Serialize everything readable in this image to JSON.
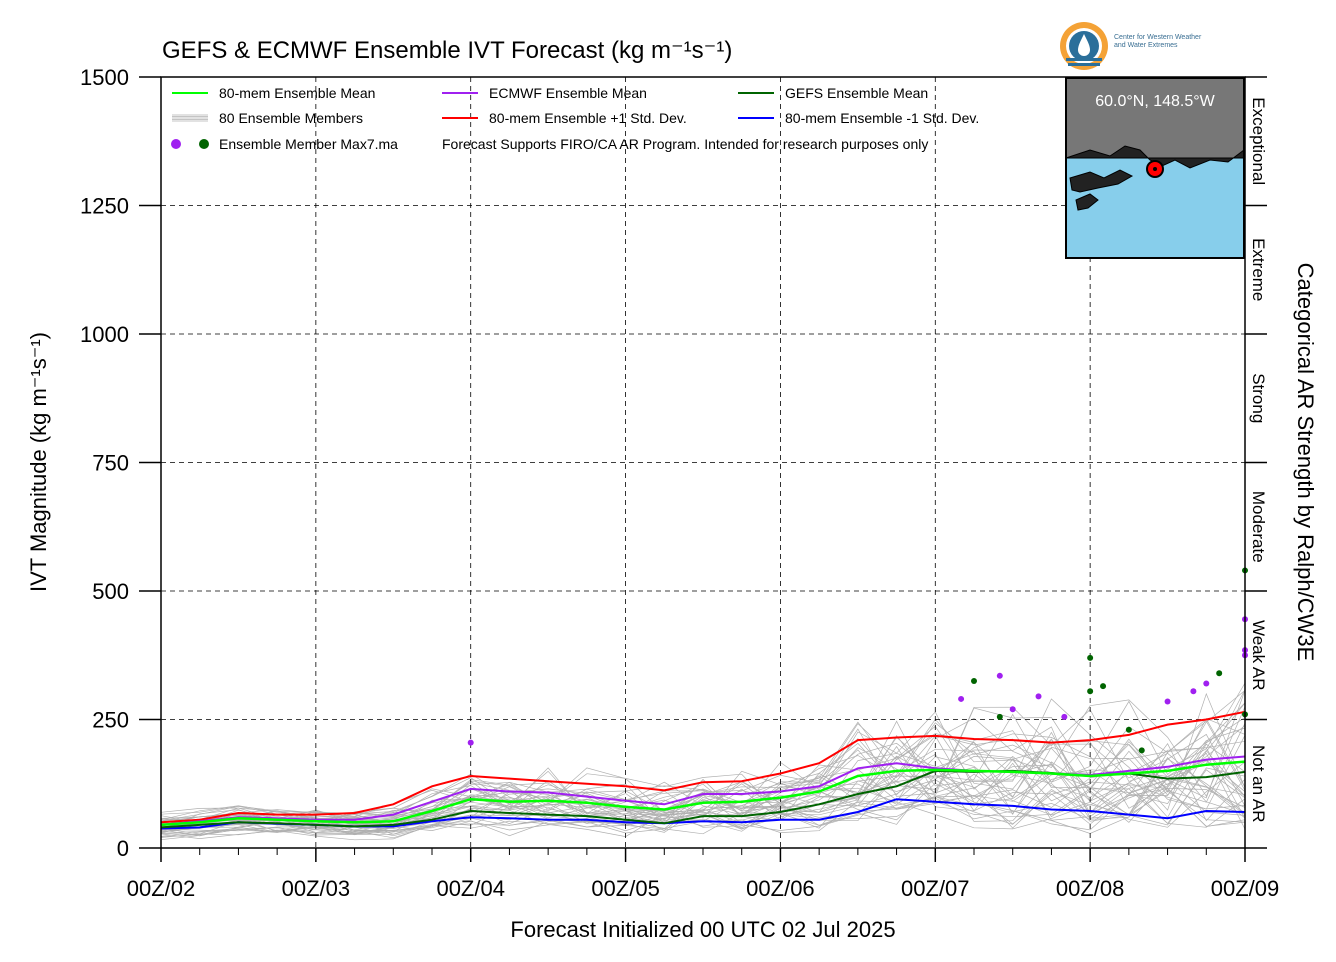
{
  "chart_data": {
    "type": "line",
    "title": "GEFS & ECMWF Ensemble IVT Forecast (kg m⁻¹s⁻¹)",
    "xlabel": "Forecast Initialized 00 UTC 02 Jul 2025",
    "ylabel": "IVT Magnitude (kg m⁻¹s⁻¹)",
    "right_axis_label": "Categorical AR Strength by Ralph/CW3E",
    "ylim": [
      0,
      1500
    ],
    "xlim_hours": [
      0,
      168
    ],
    "x_tick_labels": [
      "00Z/02",
      "00Z/03",
      "00Z/04",
      "00Z/05",
      "00Z/06",
      "00Z/07",
      "00Z/08",
      "00Z/09"
    ],
    "y_ticks": [
      0,
      250,
      500,
      750,
      1000,
      1250,
      1500
    ],
    "grid": true,
    "categories_right": [
      {
        "label": "Not an AR",
        "range": [
          0,
          250
        ]
      },
      {
        "label": "Weak AR",
        "range": [
          250,
          500
        ]
      },
      {
        "label": "Moderate",
        "range": [
          500,
          750
        ]
      },
      {
        "label": "Strong",
        "range": [
          750,
          1000
        ]
      },
      {
        "label": "Extreme",
        "range": [
          1000,
          1250
        ]
      },
      {
        "label": "Exceptional",
        "range": [
          1250,
          1500
        ]
      }
    ],
    "legend": {
      "placement": "top-left",
      "entries": [
        {
          "label": "80-mem Ensemble Mean",
          "color": "#00ff00"
        },
        {
          "label": "ECMWF Ensemble Mean",
          "color": "#a020f0"
        },
        {
          "label": "GEFS Ensemble Mean",
          "color": "#006400"
        },
        {
          "label": "80 Ensemble Members",
          "color": "#b0b0b0"
        },
        {
          "label": "80-mem Ensemble +1 Std. Dev.",
          "color": "#ff0000"
        },
        {
          "label": "80-mem Ensemble -1 Std. Dev.",
          "color": "#0000ff"
        },
        {
          "label": "Ensemble Member Max7.ma",
          "color": "#a020f0"
        }
      ],
      "note": "Forecast Supports FIRO/CA AR Program. Intended for research purposes only"
    },
    "inset_map": {
      "label": "60.0°N, 148.5°W",
      "land_color": "#777777",
      "ocean_color": "#87ceeb",
      "marker_color": "#ff0000"
    },
    "series": [
      {
        "name": "80-mem Ensemble Mean",
        "color": "#00ff00",
        "x": [
          0,
          6,
          12,
          18,
          24,
          30,
          36,
          42,
          48,
          54,
          60,
          66,
          72,
          78,
          84,
          90,
          96,
          102,
          108,
          114,
          120,
          126,
          132,
          138,
          144,
          150,
          156,
          162,
          168
        ],
        "values": [
          45,
          50,
          58,
          55,
          52,
          50,
          52,
          72,
          95,
          90,
          92,
          88,
          80,
          75,
          88,
          90,
          98,
          110,
          140,
          150,
          152,
          150,
          148,
          145,
          140,
          145,
          150,
          162,
          168
        ]
      },
      {
        "name": "ECMWF Ensemble Mean",
        "color": "#a020f0",
        "x": [
          0,
          6,
          12,
          18,
          24,
          30,
          36,
          42,
          48,
          54,
          60,
          66,
          72,
          78,
          84,
          90,
          96,
          102,
          108,
          114,
          120,
          126,
          132,
          138,
          144,
          150,
          156,
          162,
          168
        ],
        "values": [
          45,
          52,
          60,
          58,
          55,
          55,
          65,
          90,
          115,
          110,
          108,
          100,
          92,
          85,
          105,
          105,
          110,
          120,
          155,
          165,
          155,
          150,
          148,
          145,
          142,
          150,
          158,
          172,
          178
        ]
      },
      {
        "name": "GEFS Ensemble Mean",
        "color": "#006400",
        "x": [
          0,
          6,
          12,
          18,
          24,
          30,
          36,
          42,
          48,
          54,
          60,
          66,
          72,
          78,
          84,
          90,
          96,
          102,
          108,
          114,
          120,
          126,
          132,
          138,
          144,
          150,
          156,
          162,
          168
        ],
        "values": [
          40,
          45,
          50,
          48,
          45,
          42,
          45,
          55,
          72,
          68,
          65,
          62,
          55,
          48,
          62,
          62,
          70,
          85,
          105,
          120,
          150,
          148,
          150,
          146,
          140,
          145,
          135,
          138,
          148
        ]
      },
      {
        "name": "80-mem Ensemble +1 Std. Dev.",
        "color": "#ff0000",
        "x": [
          0,
          6,
          12,
          18,
          24,
          30,
          36,
          42,
          48,
          54,
          60,
          66,
          72,
          78,
          84,
          90,
          96,
          102,
          108,
          114,
          120,
          126,
          132,
          138,
          144,
          150,
          156,
          162,
          168
        ],
        "values": [
          50,
          55,
          68,
          65,
          65,
          68,
          85,
          120,
          140,
          135,
          130,
          125,
          120,
          112,
          128,
          130,
          145,
          165,
          210,
          215,
          218,
          212,
          210,
          205,
          210,
          220,
          240,
          250,
          265
        ]
      },
      {
        "name": "80-mem Ensemble -1 Std. Dev.",
        "color": "#0000ff",
        "x": [
          0,
          6,
          12,
          18,
          24,
          30,
          36,
          42,
          48,
          54,
          60,
          66,
          72,
          78,
          84,
          90,
          96,
          102,
          108,
          114,
          120,
          126,
          132,
          138,
          144,
          150,
          156,
          162,
          168
        ],
        "values": [
          38,
          40,
          50,
          47,
          45,
          42,
          42,
          52,
          60,
          58,
          55,
          55,
          50,
          48,
          52,
          50,
          55,
          55,
          70,
          95,
          90,
          85,
          82,
          75,
          72,
          65,
          58,
          72,
          70
        ]
      }
    ],
    "member_max_points": [
      {
        "x": 48,
        "y": 205,
        "color": "#a020f0"
      },
      {
        "x": 124,
        "y": 290,
        "color": "#a020f0"
      },
      {
        "x": 126,
        "y": 325,
        "color": "#006400"
      },
      {
        "x": 130,
        "y": 335,
        "color": "#a020f0"
      },
      {
        "x": 130,
        "y": 255,
        "color": "#006400"
      },
      {
        "x": 132,
        "y": 270,
        "color": "#a020f0"
      },
      {
        "x": 136,
        "y": 295,
        "color": "#a020f0"
      },
      {
        "x": 140,
        "y": 255,
        "color": "#a020f0"
      },
      {
        "x": 144,
        "y": 370,
        "color": "#006400"
      },
      {
        "x": 144,
        "y": 305,
        "color": "#006400"
      },
      {
        "x": 146,
        "y": 315,
        "color": "#006400"
      },
      {
        "x": 150,
        "y": 230,
        "color": "#006400"
      },
      {
        "x": 152,
        "y": 190,
        "color": "#006400"
      },
      {
        "x": 156,
        "y": 285,
        "color": "#a020f0"
      },
      {
        "x": 160,
        "y": 305,
        "color": "#a020f0"
      },
      {
        "x": 162,
        "y": 320,
        "color": "#a020f0"
      },
      {
        "x": 164,
        "y": 340,
        "color": "#006400"
      },
      {
        "x": 168,
        "y": 540,
        "color": "#006400"
      },
      {
        "x": 172,
        "y": 385,
        "color": "#a020f0"
      },
      {
        "x": 176,
        "y": 445,
        "color": "#a020f0"
      },
      {
        "x": 178,
        "y": 260,
        "color": "#006400"
      },
      {
        "x": 180,
        "y": 375,
        "color": "#a020f0"
      }
    ]
  }
}
